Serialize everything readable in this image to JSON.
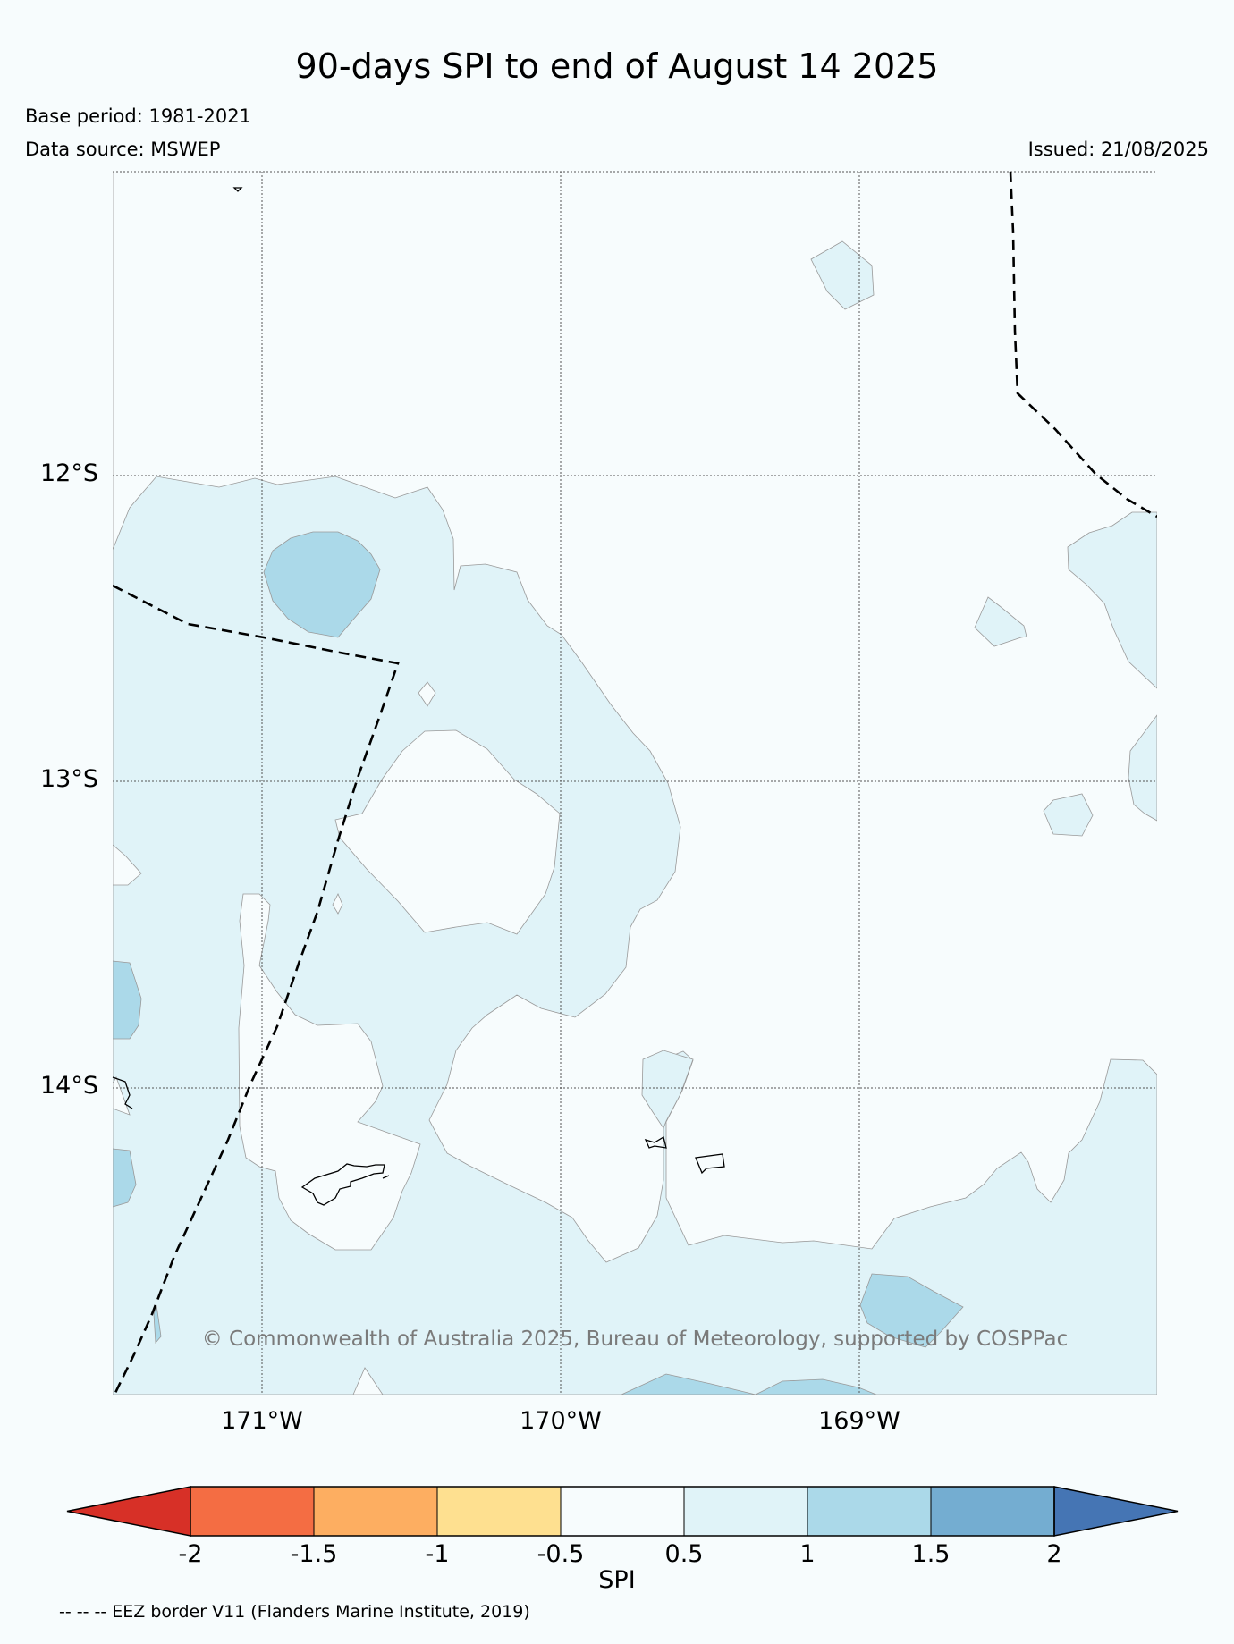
{
  "title": "90-days SPI to end of August 14 2025",
  "meta": {
    "base_period": "Base period: 1981-2021",
    "data_source": "Data source: MSWEP",
    "issued": "Issued: 21/08/2025"
  },
  "axes": {
    "lat_labels": [
      "12°S",
      "13°S",
      "14°S"
    ],
    "lon_labels": [
      "171°W",
      "170°W",
      "169°W"
    ]
  },
  "colorbar": {
    "label": "SPI",
    "ticks": [
      "-2",
      "-1.5",
      "-1",
      "-0.5",
      "0.5",
      "1",
      "1.5",
      "2"
    ],
    "bins": [
      {
        "range": "< -2",
        "color": "#d73027"
      },
      {
        "range": "-2 to -1.5",
        "color": "#f46d43"
      },
      {
        "range": "-1.5 to -1",
        "color": "#fdae61"
      },
      {
        "range": "-1 to -0.5",
        "color": "#fee090"
      },
      {
        "range": "-0.5 to 0.5",
        "color": "#f7fcfd"
      },
      {
        "range": "0.5 to 1",
        "color": "#e0f3f8"
      },
      {
        "range": "1 to 1.5",
        "color": "#abd9e9"
      },
      {
        "range": "1.5 to 2",
        "color": "#74add1"
      },
      {
        "range": "> 2",
        "color": "#4575b4"
      }
    ]
  },
  "copyright": "© Commonwealth of Australia 2025, Bureau of Meteorology, supported by COSPPac",
  "footnote": "-- -- -- EEZ border V11 (Flanders Marine Institute, 2019)",
  "colors": {
    "background": "#f7fcfd",
    "spi_05_1": "#e0f3f8",
    "spi_1_15": "#abd9e9"
  }
}
